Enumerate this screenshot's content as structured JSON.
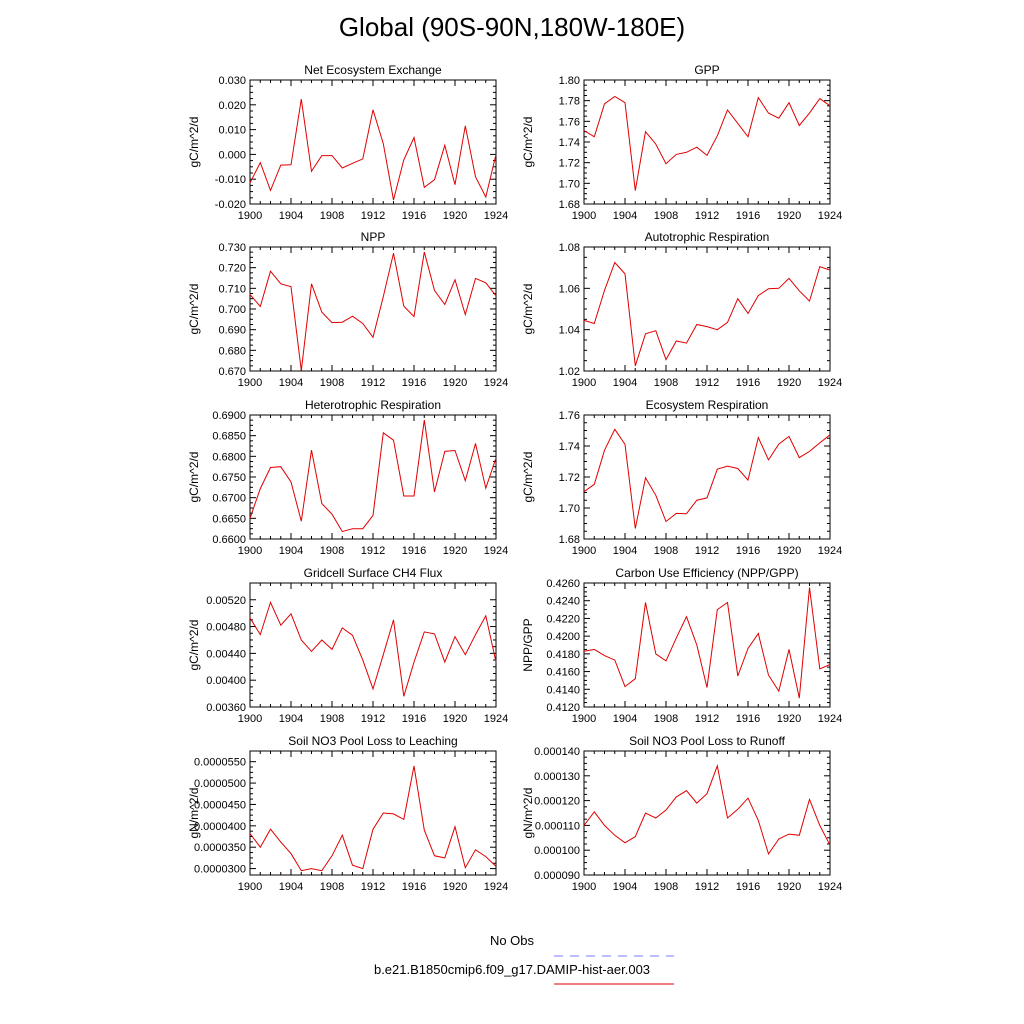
{
  "title": "Global (90S-90N,180W-180E)",
  "legend": [
    {
      "label": "No Obs",
      "color": "#7a7aff",
      "dashed": true
    },
    {
      "label": "b.e21.B1850cmip6.f09_g17.DAMIP-hist-aer.003",
      "color": "#e00000",
      "dashed": false
    }
  ],
  "chart_data": [
    {
      "type": "line",
      "title": "Net Ecosystem Exchange",
      "ylabel": "gC/m^2/d",
      "x": [
        1900,
        1901,
        1902,
        1903,
        1904,
        1905,
        1906,
        1907,
        1908,
        1909,
        1910,
        1911,
        1912,
        1913,
        1914,
        1915,
        1916,
        1917,
        1918,
        1919,
        1920,
        1921,
        1922,
        1923,
        1924
      ],
      "xlim": [
        1900,
        1924
      ],
      "xticks": [
        "1900",
        "1904",
        "1908",
        "1912",
        "1916",
        "1920",
        "1924"
      ],
      "ylim": [
        -0.02,
        0.03
      ],
      "yticks": [
        "-0.020",
        "-0.010",
        "0.000",
        "0.010",
        "0.020",
        "0.030"
      ],
      "series": [
        {
          "color": "#e00000",
          "values": [
            -0.0115,
            -0.0033,
            -0.0145,
            -0.0043,
            -0.0042,
            0.0223,
            -0.0068,
            -0.0005,
            -0.0005,
            -0.0055,
            -0.0036,
            -0.0018,
            0.018,
            0.0043,
            -0.0184,
            -0.0022,
            0.0068,
            -0.0133,
            -0.0102,
            0.0037,
            -0.0122,
            0.0115,
            -0.009,
            -0.0172,
            0.0
          ]
        }
      ]
    },
    {
      "type": "line",
      "title": "GPP",
      "ylabel": "gC/m^2/d",
      "x": [
        1900,
        1901,
        1902,
        1903,
        1904,
        1905,
        1906,
        1907,
        1908,
        1909,
        1910,
        1911,
        1912,
        1913,
        1914,
        1915,
        1916,
        1917,
        1918,
        1919,
        1920,
        1921,
        1922,
        1923,
        1924
      ],
      "xlim": [
        1900,
        1924
      ],
      "xticks": [
        "1900",
        "1904",
        "1908",
        "1912",
        "1916",
        "1920",
        "1924"
      ],
      "ylim": [
        1.68,
        1.8
      ],
      "yticks": [
        "1.68",
        "1.70",
        "1.72",
        "1.74",
        "1.76",
        "1.78",
        "1.80"
      ],
      "series": [
        {
          "color": "#e00000",
          "values": [
            1.751,
            1.745,
            1.777,
            1.784,
            1.778,
            1.693,
            1.75,
            1.738,
            1.719,
            1.728,
            1.73,
            1.735,
            1.727,
            1.746,
            1.771,
            1.758,
            1.745,
            1.783,
            1.768,
            1.763,
            1.778,
            1.756,
            1.768,
            1.782,
            1.775
          ]
        }
      ]
    },
    {
      "type": "line",
      "title": "NPP",
      "ylabel": "gC/m^2/d",
      "x": [
        1900,
        1901,
        1902,
        1903,
        1904,
        1905,
        1906,
        1907,
        1908,
        1909,
        1910,
        1911,
        1912,
        1913,
        1914,
        1915,
        1916,
        1917,
        1918,
        1919,
        1920,
        1921,
        1922,
        1923,
        1924
      ],
      "xlim": [
        1900,
        1924
      ],
      "xticks": [
        "1900",
        "1904",
        "1908",
        "1912",
        "1916",
        "1920",
        "1924"
      ],
      "ylim": [
        0.67,
        0.73
      ],
      "yticks": [
        "0.670",
        "0.680",
        "0.690",
        "0.700",
        "0.710",
        "0.720",
        "0.730"
      ],
      "series": [
        {
          "color": "#e00000",
          "values": [
            0.707,
            0.7012,
            0.7183,
            0.7122,
            0.7108,
            0.6702,
            0.7122,
            0.6985,
            0.6934,
            0.6936,
            0.6965,
            0.693,
            0.6863,
            0.706,
            0.727,
            0.7014,
            0.6963,
            0.7276,
            0.709,
            0.7022,
            0.7142,
            0.6973,
            0.7148,
            0.7127,
            0.7064
          ]
        }
      ]
    },
    {
      "type": "line",
      "title": "Autotrophic Respiration",
      "ylabel": "gC/m^2/d",
      "x": [
        1900,
        1901,
        1902,
        1903,
        1904,
        1905,
        1906,
        1907,
        1908,
        1909,
        1910,
        1911,
        1912,
        1913,
        1914,
        1915,
        1916,
        1917,
        1918,
        1919,
        1920,
        1921,
        1922,
        1923,
        1924
      ],
      "xlim": [
        1900,
        1924
      ],
      "xticks": [
        "1900",
        "1904",
        "1908",
        "1912",
        "1916",
        "1920",
        "1924"
      ],
      "ylim": [
        1.02,
        1.08
      ],
      "yticks": [
        "1.02",
        "1.04",
        "1.06",
        "1.08"
      ],
      "series": [
        {
          "color": "#e00000",
          "values": [
            1.0445,
            1.043,
            1.059,
            1.0725,
            1.067,
            1.0225,
            1.038,
            1.0395,
            1.0255,
            1.0345,
            1.0335,
            1.0425,
            1.0415,
            1.04,
            1.0435,
            1.055,
            1.0478,
            1.0565,
            1.0598,
            1.06,
            1.0648,
            1.0588,
            1.0538,
            1.0705,
            1.0688
          ]
        }
      ]
    },
    {
      "type": "line",
      "title": "Heterotrophic Respiration",
      "ylabel": "gC/m^2/d",
      "x": [
        1900,
        1901,
        1902,
        1903,
        1904,
        1905,
        1906,
        1907,
        1908,
        1909,
        1910,
        1911,
        1912,
        1913,
        1914,
        1915,
        1916,
        1917,
        1918,
        1919,
        1920,
        1921,
        1922,
        1923,
        1924
      ],
      "xlim": [
        1900,
        1924
      ],
      "xticks": [
        "1900",
        "1904",
        "1908",
        "1912",
        "1916",
        "1920",
        "1924"
      ],
      "ylim": [
        0.66,
        0.69
      ],
      "yticks": [
        "0.6600",
        "0.6650",
        "0.6700",
        "0.6750",
        "0.6800",
        "0.6850",
        "0.6900"
      ],
      "series": [
        {
          "color": "#e00000",
          "values": [
            0.665,
            0.6722,
            0.6773,
            0.6775,
            0.6738,
            0.6643,
            0.6815,
            0.6686,
            0.666,
            0.6618,
            0.6625,
            0.6625,
            0.6657,
            0.6857,
            0.6839,
            0.6704,
            0.6704,
            0.6888,
            0.6714,
            0.6812,
            0.6814,
            0.6741,
            0.6831,
            0.6723,
            0.6796
          ]
        }
      ]
    },
    {
      "type": "line",
      "title": "Ecosystem Respiration",
      "ylabel": "gC/m^2/d",
      "x": [
        1900,
        1901,
        1902,
        1903,
        1904,
        1905,
        1906,
        1907,
        1908,
        1909,
        1910,
        1911,
        1912,
        1913,
        1914,
        1915,
        1916,
        1917,
        1918,
        1919,
        1920,
        1921,
        1922,
        1923,
        1924
      ],
      "xlim": [
        1900,
        1924
      ],
      "xticks": [
        "1900",
        "1904",
        "1908",
        "1912",
        "1916",
        "1920",
        "1924"
      ],
      "ylim": [
        1.68,
        1.76
      ],
      "yticks": [
        "1.68",
        "1.70",
        "1.72",
        "1.74",
        "1.76"
      ],
      "series": [
        {
          "color": "#e00000",
          "values": [
            1.7105,
            1.7153,
            1.7372,
            1.7508,
            1.741,
            1.6868,
            1.7195,
            1.7082,
            1.6913,
            1.6965,
            1.6963,
            1.705,
            1.7065,
            1.725,
            1.727,
            1.7255,
            1.718,
            1.7455,
            1.731,
            1.7412,
            1.7462,
            1.7325,
            1.7365,
            1.742,
            1.7472
          ]
        }
      ]
    },
    {
      "type": "line",
      "title": "Gridcell Surface CH4 Flux",
      "ylabel": "gC/m^2/d",
      "x": [
        1900,
        1901,
        1902,
        1903,
        1904,
        1905,
        1906,
        1907,
        1908,
        1909,
        1910,
        1911,
        1912,
        1913,
        1914,
        1915,
        1916,
        1917,
        1918,
        1919,
        1920,
        1921,
        1922,
        1923,
        1924
      ],
      "xlim": [
        1900,
        1924
      ],
      "xticks": [
        "1900",
        "1904",
        "1908",
        "1912",
        "1916",
        "1920",
        "1924"
      ],
      "ylim": [
        0.0036,
        0.00545
      ],
      "yticks": [
        "0.00360",
        "0.00400",
        "0.00440",
        "0.00480",
        "0.00520"
      ],
      "series": [
        {
          "color": "#e00000",
          "values": [
            0.00493,
            0.00468,
            0.00516,
            0.00482,
            0.00499,
            0.0046,
            0.00443,
            0.0046,
            0.00446,
            0.00478,
            0.00467,
            0.0043,
            0.00387,
            0.00438,
            0.0049,
            0.00376,
            0.00427,
            0.00472,
            0.00469,
            0.00427,
            0.00465,
            0.00438,
            0.00468,
            0.00496,
            0.00427
          ]
        }
      ]
    },
    {
      "type": "line",
      "title": "Carbon Use Efficiency (NPP/GPP)",
      "ylabel": "NPP/GPP",
      "x": [
        1900,
        1901,
        1902,
        1903,
        1904,
        1905,
        1906,
        1907,
        1908,
        1909,
        1910,
        1911,
        1912,
        1913,
        1914,
        1915,
        1916,
        1917,
        1918,
        1919,
        1920,
        1921,
        1922,
        1923,
        1924
      ],
      "xlim": [
        1900,
        1924
      ],
      "xticks": [
        "1900",
        "1904",
        "1908",
        "1912",
        "1916",
        "1920",
        "1924"
      ],
      "ylim": [
        0.412,
        0.426
      ],
      "yticks": [
        "0.4120",
        "0.4140",
        "0.4160",
        "0.4180",
        "0.4200",
        "0.4220",
        "0.4240",
        "0.4260"
      ],
      "series": [
        {
          "color": "#e00000",
          "values": [
            0.4183,
            0.4185,
            0.4178,
            0.4173,
            0.4143,
            0.4152,
            0.4238,
            0.418,
            0.4172,
            0.4198,
            0.4222,
            0.419,
            0.4142,
            0.423,
            0.4238,
            0.4155,
            0.4186,
            0.4203,
            0.4156,
            0.4138,
            0.4185,
            0.413,
            0.4255,
            0.4163,
            0.4168
          ]
        }
      ]
    },
    {
      "type": "line",
      "title": "Soil NO3 Pool Loss to Leaching",
      "ylabel": "gN/m^2/d",
      "x": [
        1900,
        1901,
        1902,
        1903,
        1904,
        1905,
        1906,
        1907,
        1908,
        1909,
        1910,
        1911,
        1912,
        1913,
        1914,
        1915,
        1916,
        1917,
        1918,
        1919,
        1920,
        1921,
        1922,
        1923,
        1924
      ],
      "xlim": [
        1900,
        1924
      ],
      "xticks": [
        "1900",
        "1904",
        "1908",
        "1912",
        "1916",
        "1920",
        "1924"
      ],
      "ylim": [
        2.85e-05,
        5.75e-05
      ],
      "yticks": [
        "0.0000300",
        "0.0000350",
        "0.0000400",
        "0.0000450",
        "0.0000500",
        "0.0000550"
      ],
      "series": [
        {
          "color": "#e00000",
          "values": [
            3.82e-05,
            3.5e-05,
            3.92e-05,
            3.62e-05,
            3.35e-05,
            2.95e-05,
            3e-05,
            2.95e-05,
            3.3e-05,
            3.78e-05,
            3.08e-05,
            3e-05,
            3.92e-05,
            4.3e-05,
            4.28e-05,
            4.15e-05,
            5.4e-05,
            3.9e-05,
            3.3e-05,
            3.25e-05,
            3.98e-05,
            3.02e-05,
            3.44e-05,
            3.28e-05,
            3.05e-05
          ]
        }
      ]
    },
    {
      "type": "line",
      "title": "Soil NO3 Pool Loss to Runoff",
      "ylabel": "gN/m^2/d",
      "x": [
        1900,
        1901,
        1902,
        1903,
        1904,
        1905,
        1906,
        1907,
        1908,
        1909,
        1910,
        1911,
        1912,
        1913,
        1914,
        1915,
        1916,
        1917,
        1918,
        1919,
        1920,
        1921,
        1922,
        1923,
        1924
      ],
      "xlim": [
        1900,
        1924
      ],
      "xticks": [
        "1900",
        "1904",
        "1908",
        "1912",
        "1916",
        "1920",
        "1924"
      ],
      "ylim": [
        9e-05,
        0.00014
      ],
      "yticks": [
        "0.000090",
        "0.000100",
        "0.000110",
        "0.000120",
        "0.000130",
        "0.000140"
      ],
      "series": [
        {
          "color": "#e00000",
          "values": [
            0.00011,
            0.0001155,
            0.00011,
            0.000106,
            0.000103,
            0.0001055,
            0.000115,
            0.000113,
            0.0001162,
            0.0001215,
            0.000124,
            0.000119,
            0.0001228,
            0.000134,
            0.000113,
            0.0001165,
            0.000121,
            0.000112,
            9.85e-05,
            0.0001045,
            0.0001065,
            0.000106,
            0.0001205,
            0.00011,
            0.000102
          ]
        }
      ]
    }
  ]
}
